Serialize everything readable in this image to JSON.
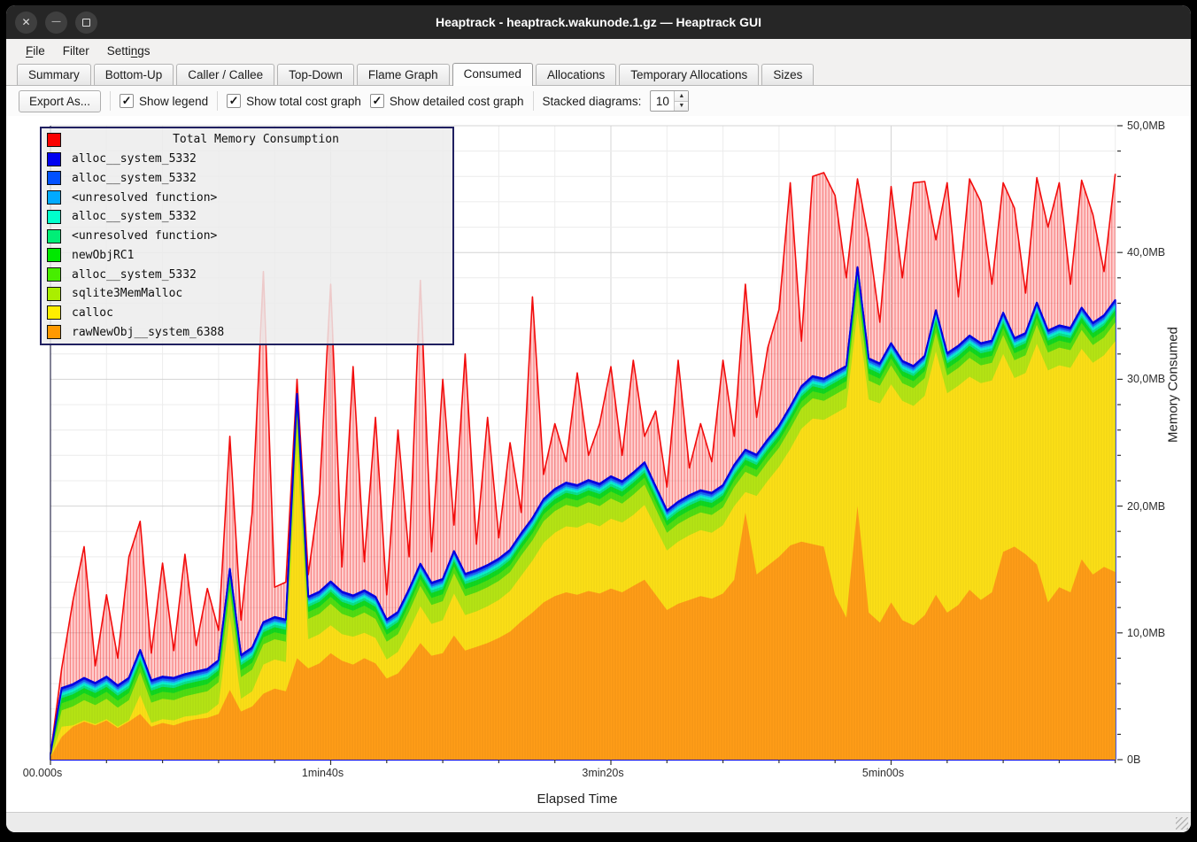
{
  "window": {
    "title": "Heaptrack - heaptrack.wakunode.1.gz — Heaptrack GUI",
    "controls": [
      {
        "name": "close",
        "glyph": "✕"
      },
      {
        "name": "minimize",
        "glyph": "—"
      },
      {
        "name": "maximize",
        "glyph": ""
      }
    ]
  },
  "menubar": {
    "items": [
      {
        "label": "File",
        "accel_index": 0
      },
      {
        "label": "Filter",
        "accel_index": -1
      },
      {
        "label": "Settings",
        "accel_index": 5
      }
    ]
  },
  "tabs": {
    "active": "Consumed",
    "items": [
      "Summary",
      "Bottom-Up",
      "Caller / Callee",
      "Top-Down",
      "Flame Graph",
      "Consumed",
      "Allocations",
      "Temporary Allocations",
      "Sizes"
    ]
  },
  "toolbar": {
    "export_label": "Export As...",
    "checkboxes": [
      {
        "label": "Show legend",
        "checked": true
      },
      {
        "label": "Show total cost graph",
        "checked": true
      },
      {
        "label": "Show detailed cost graph",
        "checked": true
      }
    ],
    "check_glyph": "✓",
    "stacked_label": "Stacked diagrams:",
    "stacked_value": "10",
    "spin_up_glyph": "▲",
    "spin_down_glyph": "▼"
  },
  "chart_data": {
    "type": "area",
    "title": "Total Memory Consumption",
    "xlabel": "Elapsed Time",
    "ylabel": "Memory Consumed",
    "ylim": [
      0,
      50
    ],
    "y_unit": "MB",
    "grid": true,
    "legend_position": "top-left",
    "y_ticks": [
      {
        "mb": 0,
        "label": "0B"
      },
      {
        "mb": 10,
        "label": "10,0MB"
      },
      {
        "mb": 20,
        "label": "20,0MB"
      },
      {
        "mb": 30,
        "label": "30,0MB"
      },
      {
        "mb": 40,
        "label": "40,0MB"
      },
      {
        "mb": 50,
        "label": "50,0MB"
      }
    ],
    "y_minor_step_mb": 2,
    "x_ticks": [
      {
        "t": 0,
        "label": "00.000s"
      },
      {
        "t": 100,
        "label": "1min40s"
      },
      {
        "t": 200,
        "label": "3min20s"
      },
      {
        "t": 300,
        "label": "5min00s"
      }
    ],
    "x_minor_step_s": 20,
    "x": {
      "start": 0,
      "step": 4,
      "unit": "s"
    },
    "total": {
      "name": "Total Memory Consumption",
      "color": "#f20c0c",
      "values": [
        0.4,
        7.2,
        12.5,
        16.8,
        7.4,
        13.0,
        8.0,
        16.0,
        18.8,
        8.4,
        15.5,
        8.6,
        16.2,
        9.0,
        13.5,
        10.2,
        25.5,
        11.0,
        19.5,
        38.5,
        13.6,
        14.0,
        30.0,
        14.6,
        21.0,
        37.5,
        15.2,
        31.0,
        15.6,
        27.0,
        13.0,
        26.0,
        16.0,
        37.8,
        16.4,
        30.0,
        18.5,
        32.0,
        17.0,
        27.0,
        17.5,
        25.0,
        19.5,
        36.5,
        22.5,
        26.5,
        23.5,
        30.5,
        24.0,
        26.5,
        31.0,
        24.0,
        31.5,
        25.5,
        27.5,
        21.5,
        31.5,
        23.0,
        26.5,
        23.5,
        31.5,
        25.5,
        37.5,
        27.0,
        32.5,
        35.5,
        45.5,
        33.0,
        46.0,
        46.3,
        44.5,
        38.0,
        45.8,
        41.0,
        34.5,
        45.2,
        38.0,
        45.5,
        45.6,
        41.0,
        45.5,
        36.5,
        45.8,
        44.0,
        37.5,
        45.5,
        43.5,
        36.8,
        45.9,
        42.0,
        45.5,
        37.5,
        45.7,
        43.0,
        38.5,
        46.2
      ]
    },
    "stacked_series_bottom_to_top": [
      {
        "name": "rawNewObj__system_6388",
        "color": "#ff9900",
        "fill": "#ff9d17",
        "values": [
          0.2,
          1.8,
          2.6,
          3.0,
          2.7,
          3.1,
          2.5,
          3.0,
          3.6,
          2.6,
          2.9,
          2.7,
          3.0,
          3.2,
          3.3,
          3.6,
          5.5,
          3.8,
          4.2,
          5.2,
          5.6,
          5.4,
          8.0,
          7.2,
          7.6,
          8.4,
          7.8,
          7.5,
          8.0,
          7.6,
          6.4,
          6.8,
          7.9,
          9.2,
          8.2,
          8.4,
          9.8,
          8.6,
          8.9,
          9.2,
          9.6,
          10.1,
          10.9,
          11.6,
          12.4,
          12.9,
          13.2,
          13.0,
          13.3,
          13.1,
          13.5,
          13.2,
          13.7,
          14.2,
          13.0,
          11.8,
          12.3,
          12.6,
          12.9,
          12.7,
          13.1,
          14.2,
          19.5,
          14.6,
          15.3,
          16.0,
          16.9,
          17.2,
          17.0,
          16.8,
          13.0,
          11.2,
          20.0,
          11.6,
          10.8,
          12.4,
          11.0,
          10.6,
          11.4,
          13.0,
          11.6,
          12.2,
          13.4,
          12.6,
          13.2,
          16.4,
          16.8,
          16.2,
          15.4,
          12.4,
          13.6,
          13.2,
          15.8,
          14.6,
          15.2,
          14.8
        ]
      },
      {
        "name": "calloc",
        "color": "#ffee00",
        "fill": "#fcdf16",
        "values": [
          0,
          0.8,
          0.1,
          0.1,
          0.1,
          0.1,
          0.1,
          0.1,
          1.5,
          0.3,
          0.3,
          0.4,
          0.4,
          0.3,
          0.4,
          0.8,
          5.8,
          1.0,
          1.2,
          2.3,
          2.3,
          2.3,
          16.9,
          2.3,
          2.3,
          2.2,
          2.1,
          2.2,
          2.0,
          2.0,
          1.5,
          1.7,
          2.3,
          2.9,
          2.5,
          2.6,
          3.3,
          2.8,
          2.8,
          2.9,
          3.0,
          3.2,
          3.6,
          4.1,
          4.7,
          5.0,
          5.2,
          5.3,
          5.4,
          5.3,
          5.5,
          5.5,
          5.6,
          5.9,
          5.3,
          4.7,
          4.9,
          5.1,
          5.2,
          5.2,
          5.4,
          5.8,
          1.6,
          6.2,
          6.7,
          7.1,
          7.6,
          8.9,
          9.9,
          10.0,
          14.3,
          16.6,
          15.3,
          16.8,
          17.3,
          17.2,
          17.3,
          17.3,
          17.3,
          19.2,
          17.3,
          17.3,
          16.8,
          17.1,
          16.7,
          15.6,
          13.3,
          14.3,
          17.4,
          18.3,
          17.5,
          17.7,
          16.6,
          16.7,
          16.7,
          18.2
        ]
      },
      {
        "name": "sqlite3MemMalloc",
        "color": "#aaee00",
        "fill": "#b5e414",
        "values": [
          0.1,
          1.3,
          1.5,
          1.6,
          1.5,
          1.6,
          1.5,
          1.6,
          1.8,
          1.6,
          1.6,
          1.6,
          1.6,
          1.7,
          1.7,
          1.7,
          2.0,
          1.7,
          1.7,
          1.6,
          1.6,
          1.6,
          2.2,
          1.6,
          1.6,
          1.7,
          1.6,
          1.5,
          1.6,
          1.5,
          1.4,
          1.4,
          1.5,
          1.6,
          1.5,
          1.5,
          1.6,
          1.5,
          1.5,
          1.5,
          1.5,
          1.5,
          1.6,
          1.6,
          1.7,
          1.7,
          1.7,
          1.6,
          1.6,
          1.6,
          1.6,
          1.5,
          1.6,
          1.6,
          1.5,
          1.4,
          1.4,
          1.4,
          1.4,
          1.4,
          1.4,
          1.5,
          1.6,
          1.5,
          1.5,
          1.5,
          1.6,
          1.6,
          1.6,
          1.5,
          1.5,
          1.5,
          1.8,
          1.5,
          1.4,
          1.5,
          1.4,
          1.4,
          1.4,
          1.5,
          1.4,
          1.4,
          1.5,
          1.4,
          1.4,
          1.5,
          1.4,
          1.4,
          1.5,
          1.4,
          1.4,
          1.4,
          1.5,
          1.4,
          1.4,
          1.5
        ]
      },
      {
        "name": "alloc__system_5332",
        "color": "#44ee00",
        "fill": "#4fdd12",
        "thickness": 0.55
      },
      {
        "name": "newObjRC1",
        "color": "#00ee00",
        "fill": "#10d820",
        "thickness": 0.4
      },
      {
        "name": "<unresolved function>",
        "color": "#00ee77",
        "fill": "#0cdf8a",
        "thickness": 0.2
      },
      {
        "name": "alloc__system_5332",
        "color": "#00ffcc",
        "fill": "#0af0cd",
        "thickness": 0.18
      },
      {
        "name": "<unresolved function>",
        "color": "#00aaff",
        "fill": "#19b2f5",
        "thickness": 0.12
      },
      {
        "name": "alloc__system_5332",
        "color": "#0055ff",
        "fill": "#1a66f0",
        "thickness": 0.15
      },
      {
        "name": "alloc__system_5332",
        "color": "#0000ff",
        "fill": "#1a1ae8",
        "thickness": 0.15,
        "stroke": "#0000e0"
      }
    ],
    "legend": {
      "entries": [
        {
          "label": "Total Memory Consumption",
          "color": "#fb0000",
          "is_title": true
        },
        {
          "label": "alloc__system_5332",
          "color": "#0000f0"
        },
        {
          "label": "alloc__system_5332",
          "color": "#0050ff"
        },
        {
          "label": "<unresolved function>",
          "color": "#00aaff"
        },
        {
          "label": "alloc__system_5332",
          "color": "#00ffcc"
        },
        {
          "label": "<unresolved function>",
          "color": "#00ee77"
        },
        {
          "label": "newObjRC1",
          "color": "#00e800"
        },
        {
          "label": "alloc__system_5332",
          "color": "#47ee00"
        },
        {
          "label": "sqlite3MemMalloc",
          "color": "#aaee00"
        },
        {
          "label": "calloc",
          "color": "#ffee00"
        },
        {
          "label": "rawNewObj__system_6388",
          "color": "#ff9900"
        }
      ]
    }
  }
}
